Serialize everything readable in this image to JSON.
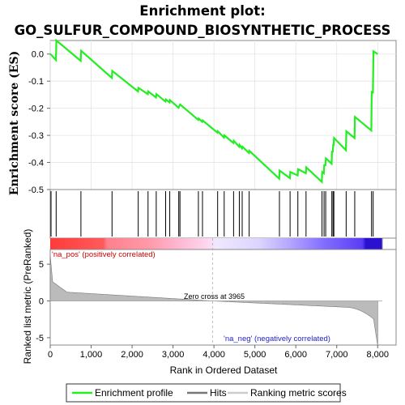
{
  "chart_data": {
    "type": "line",
    "title_line1": "Enrichment plot:",
    "title_line2": "GO_SULFUR_COMPOUND_BIOSYNTHETIC_PROCESS",
    "es_ylabel": "Enrichment score (ES)",
    "es_yticks": [
      "0.0",
      "-0.1",
      "-0.2",
      "-0.3",
      "-0.4",
      "-0.5"
    ],
    "es_ylim": [
      -0.5,
      0.05
    ],
    "metric_ylabel": "Ranked list metric (PreRanked)",
    "metric_yticks": [
      "5",
      "0",
      "-5"
    ],
    "metric_ylim": [
      -6,
      7
    ],
    "xlabel": "Rank in Ordered Dataset",
    "xticks": [
      "0",
      "1,000",
      "2,000",
      "3,000",
      "4,000",
      "5,000",
      "6,000",
      "7,000",
      "8,000"
    ],
    "xlim": [
      0,
      8450
    ],
    "zero_cross_label": "Zero cross at 3965",
    "zero_cross": 3965,
    "pos_label": "'na_pos' (positively correlated)",
    "neg_label": "'na_neg' (negatively correlated)",
    "legend": [
      {
        "label": "Enrichment profile",
        "color": "#00dd00"
      },
      {
        "label": "Hits",
        "color": "#777777"
      },
      {
        "label": "Ranking metric scores",
        "color": "#cccccc"
      }
    ],
    "profile_color": "#22ee22",
    "hits": [
      20,
      145,
      750,
      1510,
      2150,
      2390,
      2590,
      2820,
      2920,
      3140,
      3170,
      3620,
      3720,
      4090,
      4250,
      4480,
      4620,
      4690,
      4860,
      5600,
      5860,
      6050,
      6250,
      6640,
      6690,
      6730,
      6880,
      6910,
      6930,
      7230,
      7440,
      7850,
      7890
    ],
    "es_points": [
      [
        0,
        0.0
      ],
      [
        20,
        -0.002
      ],
      [
        140,
        -0.022
      ],
      [
        150,
        0.05
      ],
      [
        745,
        -0.025
      ],
      [
        755,
        0.012
      ],
      [
        1505,
        -0.088
      ],
      [
        1515,
        -0.062
      ],
      [
        2145,
        -0.138
      ],
      [
        2155,
        -0.125
      ],
      [
        2385,
        -0.148
      ],
      [
        2395,
        -0.138
      ],
      [
        2585,
        -0.16
      ],
      [
        2595,
        -0.148
      ],
      [
        2815,
        -0.175
      ],
      [
        2825,
        -0.168
      ],
      [
        2915,
        -0.178
      ],
      [
        2925,
        -0.17
      ],
      [
        3135,
        -0.198
      ],
      [
        3175,
        -0.186
      ],
      [
        3615,
        -0.243
      ],
      [
        3625,
        -0.238
      ],
      [
        3715,
        -0.25
      ],
      [
        3725,
        -0.245
      ],
      [
        4085,
        -0.29
      ],
      [
        4095,
        -0.285
      ],
      [
        4245,
        -0.308
      ],
      [
        4255,
        -0.3
      ],
      [
        4475,
        -0.328
      ],
      [
        4485,
        -0.32
      ],
      [
        4615,
        -0.342
      ],
      [
        4625,
        -0.335
      ],
      [
        4685,
        -0.348
      ],
      [
        4695,
        -0.342
      ],
      [
        4855,
        -0.365
      ],
      [
        4865,
        -0.357
      ],
      [
        5595,
        -0.46
      ],
      [
        5605,
        -0.43
      ],
      [
        5855,
        -0.458
      ],
      [
        5865,
        -0.435
      ],
      [
        6045,
        -0.448
      ],
      [
        6055,
        -0.425
      ],
      [
        6245,
        -0.44
      ],
      [
        6255,
        -0.418
      ],
      [
        6635,
        -0.472
      ],
      [
        6645,
        -0.435
      ],
      [
        6685,
        -0.44
      ],
      [
        6695,
        -0.41
      ],
      [
        6725,
        -0.41
      ],
      [
        6735,
        -0.385
      ],
      [
        6875,
        -0.405
      ],
      [
        6885,
        -0.36
      ],
      [
        6905,
        -0.36
      ],
      [
        6915,
        -0.335
      ],
      [
        6925,
        -0.335
      ],
      [
        6935,
        -0.31
      ],
      [
        7225,
        -0.355
      ],
      [
        7235,
        -0.285
      ],
      [
        7435,
        -0.31
      ],
      [
        7445,
        -0.232
      ],
      [
        7845,
        -0.282
      ],
      [
        7855,
        -0.14
      ],
      [
        7885,
        -0.142
      ],
      [
        7895,
        0.01
      ],
      [
        8000,
        0.0
      ]
    ]
  }
}
